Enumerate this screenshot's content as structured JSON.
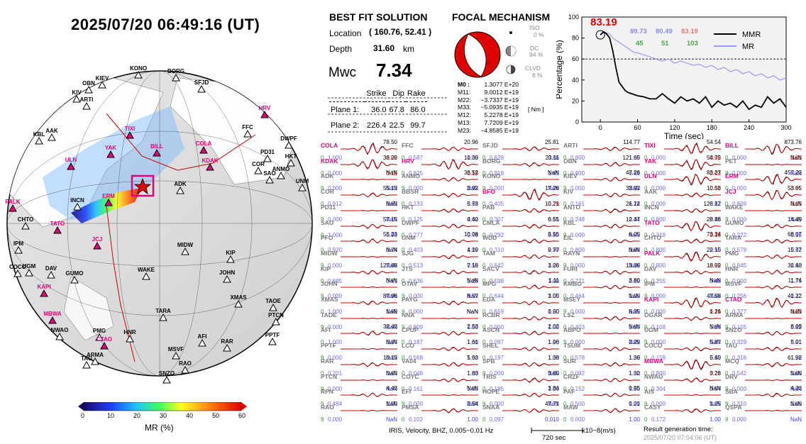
{
  "event_time": "2025/07/20  06:49:16 (UT)",
  "globe": {
    "used_stations": [
      "HRV",
      "TIXI",
      "YAK",
      "BILL",
      "COLA",
      "ULN",
      "KDAK",
      "PALK",
      "ERM",
      "TATO",
      "JCJ",
      "KAPI",
      "MBWA",
      "CTAO"
    ],
    "other_stations": [
      "KONO",
      "BORG",
      "SFJD",
      "KIEV",
      "OBN",
      "KIV",
      "ARTI",
      "AAK",
      "KBL",
      "FFC",
      "DWPF",
      "PD31",
      "HKT",
      "COR",
      "ANMO",
      "SAO",
      "UNM",
      "ADK",
      "INCN",
      "CHTO",
      "IPM",
      "UGM",
      "COCO",
      "DAV",
      "MIDW",
      "KIP",
      "WAKE",
      "JOHN",
      "GUMO",
      "XMAS",
      "TAOE",
      "PTCN",
      "TARA",
      "PMG",
      "NWAO",
      "HNR",
      "AFI",
      "RAR",
      "PPTF",
      "MSVF",
      "ARMA",
      "TAU",
      "RAO",
      "SNZO"
    ]
  },
  "colorbar": {
    "label": "MR (%)",
    "ticks": [
      "0",
      "10",
      "20",
      "30",
      "40",
      "50",
      "60"
    ]
  },
  "best_fit": {
    "title": "BEST FIT SOLUTION",
    "location_label": "Location",
    "location_value": "( 160.76,  52.41 )",
    "depth_label": "Depth",
    "depth_value": "31.60",
    "depth_unit": "km",
    "mw_label": "Mwc",
    "mw_value": "7.34",
    "planes_header": [
      "Strike",
      "Dip",
      "Rake"
    ],
    "planes": [
      {
        "label": "Plane 1:",
        "strike": "36.0",
        "dip": "67.8",
        "rake": "86.0"
      },
      {
        "label": "Plane 2:",
        "strike": "226.4",
        "dip": "22.5",
        "rake": "99.7"
      }
    ]
  },
  "focal": {
    "title": "FOCAL MECHANISM",
    "iso_label": "ISO",
    "iso_value": "0 %",
    "dc_label": "DC",
    "dc_value": "94 %",
    "clvd_label": "CLVD",
    "clvd_value": "6 %",
    "moment_tensor": [
      {
        "k": "M0 :",
        "v": "1.3077 E+20"
      },
      {
        "k": "M11:",
        "v": "9.0012 E+19"
      },
      {
        "k": "M22:",
        "v": "−3.7337 E+19"
      },
      {
        "k": "M33:",
        "v": "−5.0935 E+19"
      },
      {
        "k": "M12:",
        "v": "5.2278 E+19"
      },
      {
        "k": "M13:",
        "v": "7.7209 E+19"
      },
      {
        "k": "M23:",
        "v": "−4.8585 E+19"
      }
    ],
    "unit": "[ Nm ]"
  },
  "mr_chart": {
    "ylabel": "Percentage (%)",
    "xlabel": "Time (sec)",
    "xticks": [
      "0",
      "60",
      "120",
      "180",
      "240",
      "300"
    ],
    "yticks": [
      "0",
      "20",
      "40",
      "60",
      "80",
      "100"
    ],
    "peak_value": "83.19",
    "legend": [
      "MMR",
      "MR"
    ],
    "stats_top": [
      "89.73",
      "80.49",
      "83.19"
    ],
    "stats_bottom": [
      "45",
      "51",
      "103"
    ]
  },
  "chart_data": {
    "type": "line",
    "xlabel": "Time (sec)",
    "ylabel": "Percentage (%)",
    "xlim": [
      -30,
      300
    ],
    "ylim": [
      0,
      100
    ],
    "reference_line": 60,
    "series": [
      {
        "name": "MMR",
        "x": [
          0,
          5,
          10,
          15,
          20,
          25,
          30,
          35,
          40,
          45,
          50,
          55,
          60,
          70,
          80,
          90,
          100,
          110,
          120,
          130,
          140,
          150,
          160,
          170,
          180,
          190,
          200,
          210,
          220,
          230,
          240,
          250,
          260,
          270,
          280,
          290,
          300
        ],
        "y": [
          83,
          86,
          84,
          80,
          68,
          52,
          38,
          34,
          30,
          28,
          27,
          26,
          25,
          24,
          22,
          22,
          27,
          22,
          18,
          24,
          20,
          22,
          18,
          24,
          14,
          20,
          16,
          18,
          14,
          20,
          12,
          16,
          14,
          24,
          18,
          22,
          14
        ]
      },
      {
        "name": "MR",
        "x": [
          0,
          5,
          10,
          15,
          20,
          25,
          30,
          35,
          40,
          45,
          50,
          55,
          60,
          70,
          80,
          90,
          100,
          110,
          120,
          130,
          140,
          150,
          160,
          170,
          180,
          190,
          200,
          210,
          220,
          230,
          240,
          250,
          260,
          270,
          280,
          290,
          300
        ],
        "y": [
          83,
          85,
          85,
          84,
          80,
          78,
          76,
          74,
          72,
          70,
          68,
          66,
          66,
          64,
          62,
          60,
          58,
          60,
          56,
          58,
          56,
          54,
          55,
          52,
          54,
          50,
          52,
          48,
          50,
          46,
          48,
          44,
          46,
          42,
          44,
          40,
          42
        ]
      }
    ]
  },
  "waveforms": [
    [
      "COLA|78.50|0|1.000|0.09|u|r",
      "KDAK|38.20|0|0.000|0.18|u|r",
      "ADK|NaN|9|0.000|NaN|o|b",
      "COR|55.13|0|0.912|0.63|o|b",
      "PD31|NaN|9|0.000|NaN|o|b",
      "SAO|57.15|0|1.000|0.96|o|b",
      "PFO|55.23|0|0.920|0.74|o|b",
      "MIDW|NaN|9|0.000|NaN|o|b",
      "KIP|127.88|0|0.685|0.61|o|b",
      "JOHN|NaN|9|0.000|NaN|o|b",
      "XMAS|87.96|0|1.000|1.68|o|b",
      "TAOE|NaN|9|0.000|NaN|o|b",
      "AFI|32.43|0|1.000|0.37|o|b",
      "PPTF|NaN|9|0.000|NaN|o|b",
      "RAR|10.13|0|0.201|0.63|o|b",
      "PTCN|NaN|9|0.000|NaN|o|b",
      "RPN|4.43|9|0.484|1.00|o|b",
      "RAO|NaN|9|0.000|NaN|o|b"
    ],
    [
      "FFC|20.96|0|0.587|1.00|o|b",
      "HRV|10.39|0|0.825|0.18|u|r",
      "ANMO|36.52|9|0.000|NaN|o|b",
      "BBSR|2.92|0|0.133|0.66|o|b",
      "HKT|5.73|0|0.125|0.62|o|b",
      "DWPF|4.40|0|0.277|0.78|o|b",
      "UNM|10.08|0|0.403|1.00|o|b",
      "SJG|4.19|0|0.513|0.55|o|b",
      "JTS|7.18|0|0.636|1.28|o|b",
      "OTAV|NaN|9|0.000|NaN|o|b",
      "PAYG|8.57|9|0.000|NaN|o|b",
      "NNA|NaN|9|0.809|1.00|o|b",
      "CPUP|2.53|0|0.187|1.00|o|b",
      "LCO|1.61|0|0.568|1.00|o|b",
      "VA04|5.63|0|0.048|1.00|o|b",
      "COYC|1.83|0|0.161|1.00|o|b",
      "EFI|NaN|9|0.000|NaN|o|b",
      "PMSA|2.54|0|0.102|1.00|o|b"
    ],
    [
      "SFJD|25.81|0|0.628|0.66|o|b",
      "BORG|23.11|0|0.918|1.65|o|b",
      "KONO|NaN|9|0.000|NaN|o|b",
      "BFO|17.26|0|0.405|0.29|u|r",
      "PAB|10.21|0|0.307|0.61|o|b",
      "CMLA|6.55|0|0.292|0.80|o|b",
      "WDD|9.55|0|0.310|0.90|o|b",
      "TAM|9.77|0|0.642|1.00|o|b",
      "SACV|3.26|0|0.598|1.00|o|b",
      "MPG|1.11|0|0.644|1.00|o|b",
      "EDA|3.05|0|0.659|1.00|o|b",
      "RCBR|0.90|0|0.000|1.00|o|b",
      "ASCN|2.02|0|0.097|1.00|o|b",
      "SHEL|1.96|0|0.197|1.00|o|b",
      "SPB|1.38|9|0.000|NaN|o|b",
      "TRIS|3.60|0|0.185|1.00|o|b",
      "HOPE|3.84|9|0.000|NaN|o|b",
      "SNAA|47.71|0|0.097|0.010|o|b"
    ],
    [
      "ARTI|114.77|0|0.800|1.00|o|b",
      "OBN|121.65|0|0.800|0.83|o|b",
      "KIEV|47.26|9|0.000|NaN|o|b",
      "KIV|32.92|0|0.161|1.24|o|b",
      "ANTO|26.12|0|0.248|0.34|o|b",
      "KBL|12.47|9|0.000|NaN|o|b",
      "EIL|6.05|0|0.800|0.88|o|b",
      "RAYN|NaN|9|0.000|NaN|o|b",
      "FURI|13.36|0|0.771|0.65|o|b",
      "KMBO|3.80|0|0.464|1.00|o|b",
      "MSEY|NaN|9|0.000|NaN|o|b",
      "LSZ|6.35|0|0.403|1.00|o|b",
      "ABPO|NaN|9|0.000|NaN|o|b",
      "TSUM|2.29|0|0.578|1.00|o|b",
      "SUR|1.38|0|0.092|1.00|o|b",
      "CRZF|1.32|0|0.152|1.00|o|b",
      "PAF|0.95|0|0.500|1.00|o|b",
      "MAW|0.21|0|0.000|1.00|o|b"
    ],
    [
      "TIXI|54.54|0|0.000|0.02|u|r",
      "YAK|54.75|0|0.000|0.03|u|r",
      "ULN|83.27|0|0.000|0.03|u|r",
      "AAK|10.58|0|0.000|0.87|o|b",
      "INCN|126.12|0|0.800|0.46|o|b",
      "TATO|28.88|0|0.319|0.18|u|r",
      "CHTO|73.34|0|0.800|0.50|o|b",
      "PALK|22.15|0|0.800|0.09|u|r",
      "DAV|18.92|0|0.255|0.48|o|b",
      "IPM|NaN|9|0.000|NaN|o|b",
      "KAPI|47.58|0|0.000|0.14|u|r",
      "OGAR|1.26|9|0.108|1.26|o|b",
      "UGM|NaN|9|0.000|NaN|o|b",
      "COCO|5.87|0|0.159|0.45|o|b",
      "MBWA|5.60|0|0.800|0.28|u|r",
      "NWAO|3.28|0|0.304|0.54|o|b",
      "AIS|NaN|9|0.000|NaN|o|b",
      "CASY|1.25|0|0.172|1.00|o|b"
    ],
    [
      "BILL|873.76|0|0.000|0.01|u|r",
      "PET|NaN|9|0.000|NaN|o|b",
      "ERM|457.23|0|0.000|0.05|u|r",
      "JCJ|53.65|0|0.809|0.15|u|r",
      "WAKE|NaN|9|0.000|NaN|o|b",
      "GUMO|14.49|0|0.222|0.15|o|b",
      "TARA|68.07|0|0.579|0.62|o|b",
      "PMG|15.77|0|0.645|1.43|o|b",
      "HNR|30.60|0|0.000|1.75|o|b",
      "MSVF|11.74|0|0.256|0.32|o|b",
      "CTAO|41.22|0|0.377|0.23|u|r",
      "ARMA|NaN|9|0.155|0.82|o|b",
      "SNZO|8.09|0|0.329|0.91|o|b",
      "TAU|5.01|0|0.316|1.06|o|b",
      "MCQ|61.92|0|0.542|1.00|o|b",
      "DRV|NaN|9|0.000|NaN|o|b",
      "SBA|4.33|9|0.310|1.00|o|b",
      "QSPA|NaN|9|0.000|NaN|o|b"
    ]
  ],
  "footer": {
    "info": "IRIS, Velocity,   BHZ, 0.005−0.01 Hz",
    "scale": "720 sec",
    "units": "x10−8(m/s)",
    "gen_label": "Result generation time:",
    "gen_time": "2025/07/20 07:04:06 (UT)"
  },
  "colors": {
    "used": "#e0007a",
    "other": "#777777",
    "observed": "#000000",
    "synthetic": "#cc0000",
    "mr": "#9a9aef"
  }
}
